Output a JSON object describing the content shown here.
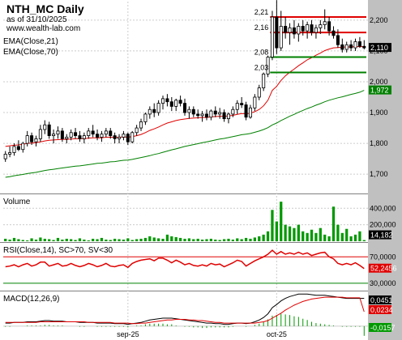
{
  "header": {
    "title": "NTH_MC Daily",
    "date": "as of 31/10/2025",
    "url": "www.wealth-lab.com"
  },
  "colors": {
    "pane_bg": "#ffffff",
    "axis_bg": "#c0c0c0",
    "grid": "#cccccc",
    "up_body": "#ffffff",
    "down_body": "#000000",
    "ema21": "#e00000",
    "ema70": "#008000",
    "support": "#008000",
    "resistance": "#e00000",
    "volume": "#009900",
    "rsi": "#e00000",
    "rsi_upper": "#e00000",
    "rsi_lower": "#008000",
    "macd": "#000000",
    "signal": "#e00000",
    "hist": "#009900"
  },
  "chart_data": [
    {
      "type": "candlestick",
      "pane": "price",
      "title": "NTH_MC Daily",
      "legend": [
        "EMA(Close,21)",
        "EMA(Close,70)"
      ],
      "ylim": [
        1640,
        2260
      ],
      "y_ticks": [
        1700,
        1800,
        1900,
        2000,
        2100,
        2200
      ],
      "y_tick_labels": [
        "1,700",
        "1,800",
        "1,900",
        "2,000",
        "2,100",
        "2,200"
      ],
      "x_labels": [
        {
          "index": 28,
          "label": "sep-25"
        },
        {
          "index": 62,
          "label": "oct-25"
        }
      ],
      "last_price_badge": "2,110",
      "ema70_badge": "1,972",
      "ohlc": [
        [
          1750,
          1775,
          1740,
          1765
        ],
        [
          1765,
          1790,
          1755,
          1770
        ],
        [
          1770,
          1800,
          1760,
          1790
        ],
        [
          1790,
          1810,
          1775,
          1780
        ],
        [
          1780,
          1805,
          1770,
          1800
        ],
        [
          1800,
          1840,
          1790,
          1825
        ],
        [
          1825,
          1835,
          1795,
          1805
        ],
        [
          1805,
          1825,
          1790,
          1815
        ],
        [
          1815,
          1860,
          1805,
          1845
        ],
        [
          1845,
          1875,
          1830,
          1860
        ],
        [
          1860,
          1870,
          1815,
          1825
        ],
        [
          1825,
          1845,
          1800,
          1830
        ],
        [
          1830,
          1855,
          1815,
          1840
        ],
        [
          1840,
          1850,
          1805,
          1815
        ],
        [
          1815,
          1830,
          1800,
          1820
        ],
        [
          1820,
          1845,
          1810,
          1835
        ],
        [
          1835,
          1850,
          1815,
          1825
        ],
        [
          1825,
          1840,
          1805,
          1815
        ],
        [
          1815,
          1835,
          1800,
          1825
        ],
        [
          1825,
          1850,
          1815,
          1840
        ],
        [
          1840,
          1860,
          1820,
          1830
        ],
        [
          1830,
          1845,
          1810,
          1820
        ],
        [
          1820,
          1840,
          1805,
          1830
        ],
        [
          1830,
          1850,
          1820,
          1840
        ],
        [
          1840,
          1850,
          1815,
          1825
        ],
        [
          1825,
          1835,
          1800,
          1815
        ],
        [
          1815,
          1830,
          1800,
          1820
        ],
        [
          1820,
          1840,
          1810,
          1830
        ],
        [
          1830,
          1835,
          1795,
          1805
        ],
        [
          1805,
          1840,
          1800,
          1835
        ],
        [
          1835,
          1860,
          1825,
          1850
        ],
        [
          1850,
          1880,
          1840,
          1870
        ],
        [
          1870,
          1900,
          1860,
          1895
        ],
        [
          1895,
          1920,
          1880,
          1910
        ],
        [
          1910,
          1930,
          1885,
          1900
        ],
        [
          1900,
          1940,
          1890,
          1930
        ],
        [
          1930,
          1955,
          1910,
          1945
        ],
        [
          1945,
          1960,
          1920,
          1935
        ],
        [
          1935,
          1950,
          1905,
          1920
        ],
        [
          1920,
          1945,
          1905,
          1940
        ],
        [
          1940,
          1955,
          1920,
          1930
        ],
        [
          1930,
          1945,
          1890,
          1900
        ],
        [
          1900,
          1920,
          1880,
          1910
        ],
        [
          1910,
          1920,
          1885,
          1895
        ],
        [
          1895,
          1910,
          1880,
          1890
        ],
        [
          1890,
          1905,
          1870,
          1895
        ],
        [
          1895,
          1910,
          1875,
          1885
        ],
        [
          1885,
          1910,
          1875,
          1905
        ],
        [
          1905,
          1920,
          1885,
          1895
        ],
        [
          1895,
          1915,
          1880,
          1900
        ],
        [
          1900,
          1910,
          1870,
          1880
        ],
        [
          1880,
          1900,
          1865,
          1895
        ],
        [
          1895,
          1920,
          1885,
          1910
        ],
        [
          1910,
          1940,
          1895,
          1930
        ],
        [
          1930,
          1950,
          1915,
          1925
        ],
        [
          1925,
          1935,
          1875,
          1885
        ],
        [
          1885,
          1925,
          1880,
          1915
        ],
        [
          1915,
          1960,
          1905,
          1950
        ],
        [
          1950,
          1990,
          1940,
          1980
        ],
        [
          1980,
          2030,
          1970,
          2025
        ],
        [
          2025,
          2085,
          2015,
          2080
        ],
        [
          2080,
          2230,
          2070,
          2210
        ],
        [
          2210,
          2265,
          2090,
          2110
        ],
        [
          2110,
          2230,
          2100,
          2180
        ],
        [
          2180,
          2210,
          2140,
          2160
        ],
        [
          2160,
          2190,
          2120,
          2175
        ],
        [
          2175,
          2200,
          2140,
          2155
        ],
        [
          2155,
          2190,
          2130,
          2180
        ],
        [
          2180,
          2200,
          2150,
          2165
        ],
        [
          2165,
          2195,
          2140,
          2185
        ],
        [
          2185,
          2200,
          2150,
          2160
        ],
        [
          2160,
          2185,
          2140,
          2175
        ],
        [
          2175,
          2200,
          2155,
          2185
        ],
        [
          2185,
          2235,
          2170,
          2195
        ],
        [
          2195,
          2210,
          2150,
          2165
        ],
        [
          2165,
          2180,
          2140,
          2150
        ],
        [
          2150,
          2170,
          2110,
          2120
        ],
        [
          2120,
          2140,
          2095,
          2105
        ],
        [
          2105,
          2130,
          2095,
          2120
        ],
        [
          2120,
          2135,
          2100,
          2110
        ],
        [
          2110,
          2140,
          2100,
          2130
        ],
        [
          2130,
          2145,
          2110,
          2115
        ],
        [
          2115,
          2135,
          2105,
          2110
        ]
      ],
      "ema21": [
        1790,
        1792,
        1794,
        1795,
        1797,
        1800,
        1801,
        1802,
        1805,
        1808,
        1810,
        1811,
        1812,
        1813,
        1813,
        1814,
        1815,
        1815,
        1815,
        1817,
        1818,
        1818,
        1818,
        1820,
        1820,
        1820,
        1820,
        1821,
        1820,
        1822,
        1825,
        1829,
        1835,
        1842,
        1847,
        1853,
        1860,
        1866,
        1870,
        1874,
        1877,
        1879,
        1881,
        1882,
        1883,
        1884,
        1884,
        1886,
        1887,
        1888,
        1888,
        1889,
        1891,
        1894,
        1897,
        1896,
        1898,
        1903,
        1910,
        1922,
        1940,
        1972,
        1985,
        2004,
        2019,
        2031,
        2041,
        2052,
        2061,
        2071,
        2078,
        2086,
        2093,
        2101,
        2106,
        2110,
        2111,
        2112,
        2113,
        2113,
        2114,
        2114,
        2114
      ],
      "ema70": [
        1690,
        1692,
        1695,
        1697,
        1699,
        1702,
        1704,
        1706,
        1709,
        1712,
        1714,
        1716,
        1718,
        1720,
        1722,
        1724,
        1726,
        1727,
        1729,
        1731,
        1733,
        1735,
        1736,
        1738,
        1740,
        1741,
        1743,
        1745,
        1746,
        1748,
        1751,
        1754,
        1757,
        1760,
        1764,
        1767,
        1771,
        1775,
        1779,
        1782,
        1786,
        1790,
        1793,
        1796,
        1799,
        1802,
        1805,
        1808,
        1811,
        1814,
        1816,
        1819,
        1822,
        1825,
        1828,
        1830,
        1832,
        1836,
        1840,
        1845,
        1851,
        1860,
        1866,
        1874,
        1881,
        1888,
        1894,
        1901,
        1907,
        1913,
        1918,
        1924,
        1929,
        1935,
        1940,
        1944,
        1948,
        1951,
        1955,
        1959,
        1962,
        1966,
        1972
      ],
      "levels": [
        {
          "value": 2210,
          "label": "2,21",
          "kind": "resistance",
          "from": 61
        },
        {
          "value": 2160,
          "label": "2,16",
          "kind": "resistance",
          "from": 61
        },
        {
          "value": 2080,
          "label": "2,08",
          "kind": "support",
          "from": 61
        },
        {
          "value": 2030,
          "label": "2,03",
          "kind": "support",
          "from": 61
        }
      ]
    },
    {
      "type": "bar",
      "pane": "volume",
      "title": "Volume",
      "ylim": [
        0,
        560000
      ],
      "y_ticks": [
        200000,
        400000
      ],
      "y_tick_labels": [
        "200,000",
        "400,000"
      ],
      "last_value_badge": "14,182",
      "values": [
        30000,
        20000,
        40000,
        25000,
        15000,
        10000,
        35000,
        20000,
        45000,
        30000,
        25000,
        15000,
        40000,
        20000,
        30000,
        25000,
        15000,
        35000,
        20000,
        10000,
        30000,
        25000,
        40000,
        20000,
        15000,
        30000,
        25000,
        20000,
        35000,
        15000,
        25000,
        30000,
        40000,
        60000,
        45000,
        35000,
        30000,
        80000,
        60000,
        50000,
        40000,
        30000,
        35000,
        25000,
        30000,
        20000,
        25000,
        30000,
        20000,
        15000,
        25000,
        30000,
        20000,
        35000,
        25000,
        40000,
        30000,
        45000,
        60000,
        80000,
        120000,
        380000,
        240000,
        480000,
        200000,
        180000,
        160000,
        200000,
        120000,
        100000,
        140000,
        100000,
        160000,
        80000,
        60000,
        420000,
        200000,
        100000,
        150000,
        60000,
        80000,
        120000,
        14182
      ]
    },
    {
      "type": "line",
      "pane": "rsi",
      "title": "RSI(Close,14), SC>70, SV<30",
      "ylim": [
        20,
        90
      ],
      "y_ticks": [
        30,
        70
      ],
      "y_tick_labels": [
        "30,0000",
        "70,0000"
      ],
      "last_value_badge": "52,2456",
      "thresholds": [
        70,
        30
      ],
      "values": [
        55,
        56,
        58,
        55,
        58,
        60,
        56,
        58,
        62,
        62,
        56,
        58,
        60,
        56,
        57,
        60,
        57,
        55,
        57,
        60,
        58,
        55,
        57,
        60,
        56,
        55,
        57,
        58,
        54,
        60,
        63,
        65,
        66,
        67,
        64,
        68,
        68,
        65,
        61,
        65,
        62,
        58,
        60,
        57,
        56,
        58,
        56,
        60,
        58,
        59,
        55,
        58,
        61,
        65,
        63,
        56,
        60,
        64,
        67,
        70,
        74,
        80,
        74,
        78,
        74,
        76,
        74,
        77,
        74,
        76,
        72,
        74,
        76,
        77,
        70,
        67,
        60,
        58,
        60,
        58,
        61,
        57,
        52.2456
      ]
    },
    {
      "type": "line",
      "pane": "macd",
      "title": "MACD(12,26,9)",
      "macd_badge": "0,0451",
      "signal_badge": "0,0234",
      "hist_badge": "-0,0157",
      "ylim": [
        -0.012,
        0.055
      ],
      "hist_baseline": 0,
      "macd": [
        0.005,
        0.005,
        0.006,
        0.006,
        0.006,
        0.007,
        0.007,
        0.007,
        0.008,
        0.009,
        0.009,
        0.008,
        0.008,
        0.008,
        0.007,
        0.007,
        0.007,
        0.006,
        0.006,
        0.006,
        0.006,
        0.005,
        0.005,
        0.005,
        0.005,
        0.004,
        0.004,
        0.004,
        0.003,
        0.004,
        0.005,
        0.006,
        0.008,
        0.01,
        0.011,
        0.012,
        0.013,
        0.013,
        0.013,
        0.012,
        0.011,
        0.01,
        0.009,
        0.008,
        0.007,
        0.006,
        0.005,
        0.005,
        0.004,
        0.004,
        0.003,
        0.003,
        0.004,
        0.005,
        0.005,
        0.004,
        0.005,
        0.007,
        0.01,
        0.014,
        0.02,
        0.03,
        0.035,
        0.041,
        0.045,
        0.048,
        0.05,
        0.052,
        0.052,
        0.052,
        0.051,
        0.05,
        0.05,
        0.05,
        0.049,
        0.048,
        0.047,
        0.046,
        0.045,
        0.045,
        0.045,
        0.045,
        0.0451
      ],
      "signal": [
        0.006,
        0.006,
        0.006,
        0.006,
        0.006,
        0.006,
        0.006,
        0.006,
        0.007,
        0.007,
        0.007,
        0.007,
        0.007,
        0.007,
        0.007,
        0.007,
        0.007,
        0.007,
        0.007,
        0.006,
        0.006,
        0.006,
        0.006,
        0.006,
        0.006,
        0.005,
        0.005,
        0.005,
        0.005,
        0.004,
        0.004,
        0.005,
        0.005,
        0.006,
        0.007,
        0.008,
        0.009,
        0.01,
        0.01,
        0.011,
        0.011,
        0.011,
        0.01,
        0.01,
        0.009,
        0.009,
        0.008,
        0.007,
        0.006,
        0.006,
        0.005,
        0.005,
        0.005,
        0.005,
        0.005,
        0.005,
        0.005,
        0.005,
        0.006,
        0.007,
        0.009,
        0.013,
        0.017,
        0.021,
        0.026,
        0.03,
        0.034,
        0.037,
        0.04,
        0.042,
        0.044,
        0.045,
        0.046,
        0.047,
        0.047,
        0.047,
        0.047,
        0.047,
        0.046,
        0.046,
        0.046,
        0.046,
        0.0234
      ],
      "hist": [
        -0.001,
        -0.001,
        0,
        0,
        0,
        0.001,
        0.001,
        0.001,
        0.001,
        0.002,
        0.002,
        0.001,
        0.001,
        0.001,
        0,
        0,
        0,
        -0.001,
        -0.001,
        0,
        0,
        -0.001,
        -0.001,
        -0.001,
        -0.001,
        -0.001,
        -0.001,
        -0.001,
        -0.002,
        0,
        0.001,
        0.001,
        0.003,
        0.004,
        0.004,
        0.004,
        0.004,
        0.003,
        0.003,
        0.001,
        0,
        -0.001,
        -0.001,
        -0.002,
        -0.002,
        -0.003,
        -0.003,
        -0.002,
        -0.002,
        -0.002,
        -0.002,
        -0.002,
        -0.001,
        0,
        0,
        -0.001,
        0,
        0.002,
        0.004,
        0.007,
        0.011,
        0.017,
        0.018,
        0.02,
        0.019,
        0.018,
        0.016,
        0.015,
        0.012,
        0.01,
        0.007,
        0.005,
        0.004,
        0.003,
        0.002,
        0.001,
        0,
        -0.001,
        -0.001,
        -0.001,
        -0.001,
        -0.001,
        -0.0157
      ]
    }
  ]
}
